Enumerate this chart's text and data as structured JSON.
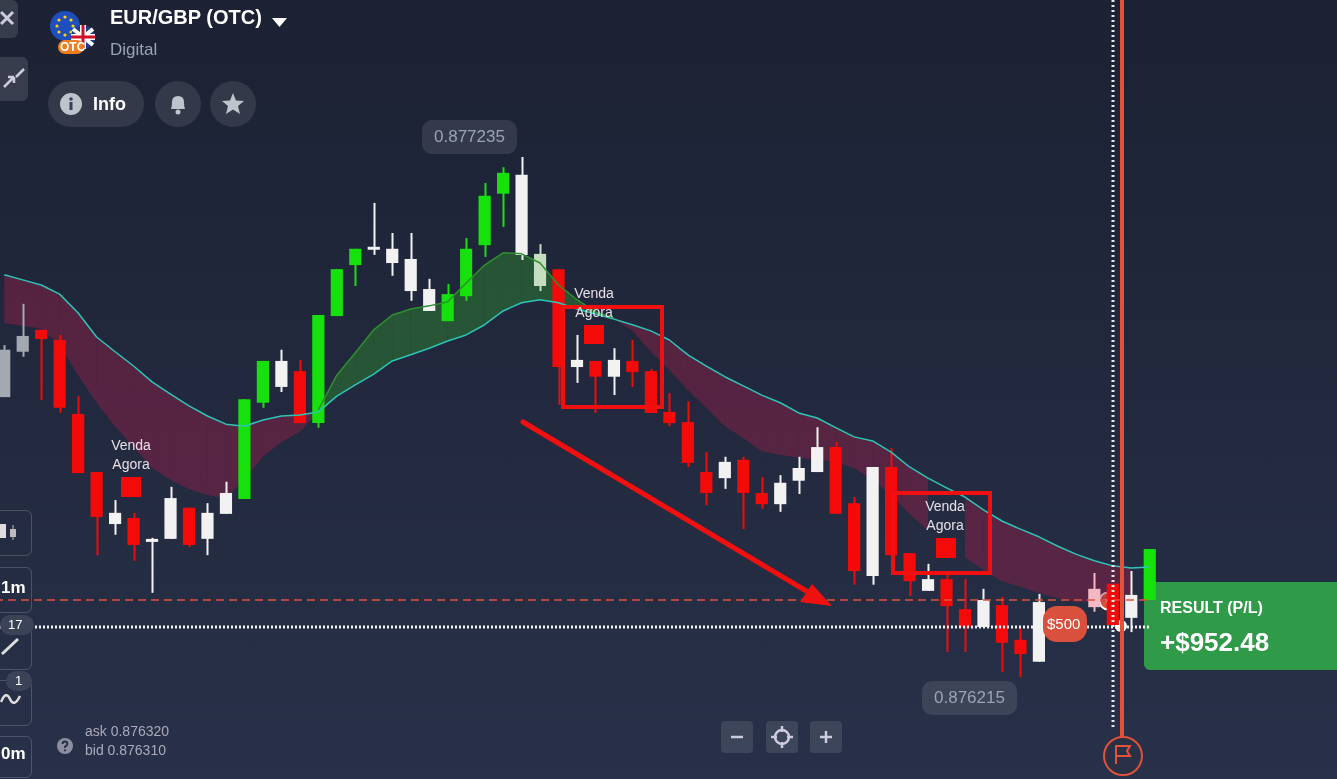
{
  "chart_data": {
    "type": "candlestick",
    "title": "EUR/GBP (OTC)",
    "subtitle": "Digital",
    "categories": [
      null,
      null,
      null,
      null,
      null,
      null,
      null,
      null,
      null,
      null,
      null,
      null,
      null,
      null,
      null,
      null,
      null,
      null,
      null,
      null,
      null,
      null,
      null,
      null,
      null,
      null,
      null,
      null,
      null,
      null,
      null,
      null,
      null,
      null,
      null,
      null,
      null,
      null,
      null,
      null,
      null,
      null,
      null,
      null,
      null,
      null,
      null,
      null,
      null,
      null,
      null,
      null,
      null,
      null,
      null,
      null,
      null,
      null,
      null,
      null,
      null,
      null,
      null
    ],
    "ohlc": [
      [
        0.876764,
        0.876866,
        0.876764,
        0.876857
      ],
      [
        0.876853,
        0.876947,
        0.876843,
        0.876884
      ],
      [
        0.876896,
        0.876896,
        0.876758,
        0.876878
      ],
      [
        0.876876,
        0.876886,
        0.876733,
        0.876743
      ],
      [
        0.876731,
        0.876766,
        0.876615,
        0.876615
      ],
      [
        0.876617,
        0.876617,
        0.876454,
        0.876529
      ],
      [
        0.876515,
        0.876562,
        0.876494,
        0.876537
      ],
      [
        0.876527,
        0.876537,
        0.876443,
        0.876474
      ],
      [
        0.87648,
        0.876488,
        0.87638,
        0.876482
      ],
      [
        0.876486,
        0.876588,
        0.876486,
        0.876566
      ],
      [
        0.876547,
        0.876547,
        0.87647,
        0.876474
      ],
      [
        0.876486,
        0.876556,
        0.876454,
        0.876537
      ],
      [
        0.876535,
        0.876598,
        0.876535,
        0.876576
      ],
      [
        0.876564,
        0.87676,
        0.876564,
        0.87676
      ],
      [
        0.876753,
        0.876835,
        0.876743,
        0.876835
      ],
      [
        0.876784,
        0.876857,
        0.876774,
        0.876835
      ],
      [
        0.876815,
        0.876837,
        0.876713,
        0.876713
      ],
      [
        0.876713,
        0.876925,
        0.876704,
        0.876925
      ],
      [
        0.876923,
        0.877015,
        0.876923,
        0.877015
      ],
      [
        0.877023,
        0.877055,
        0.876982,
        0.877055
      ],
      [
        0.877053,
        0.877145,
        0.877043,
        0.877057
      ],
      [
        0.877027,
        0.877086,
        0.877002,
        0.877055
      ],
      [
        0.876972,
        0.877086,
        0.876953,
        0.877035
      ],
      [
        0.876933,
        0.876996,
        0.876933,
        0.876976
      ],
      [
        0.876913,
        0.876986,
        0.876913,
        0.876966
      ],
      [
        0.876962,
        0.877076,
        0.876953,
        0.877055
      ],
      [
        0.877062,
        0.877184,
        0.877039,
        0.877159
      ],
      [
        0.877163,
        0.877215,
        0.877098,
        0.877204
      ],
      [
        0.877043,
        0.877235,
        0.877033,
        0.8772
      ],
      [
        0.876982,
        0.877064,
        0.876972,
        0.877045
      ],
      [
        0.877015,
        0.877015,
        0.876749,
        0.876823
      ],
      [
        0.876823,
        0.876886,
        0.876792,
        0.876837
      ],
      [
        0.876835,
        0.876835,
        0.876733,
        0.876804
      ],
      [
        0.876804,
        0.87686,
        0.876768,
        0.876837
      ],
      [
        0.876835,
        0.876876,
        0.876784,
        0.876813
      ],
      [
        0.876815,
        0.876819,
        0.876733,
        0.876733
      ],
      [
        0.876735,
        0.876772,
        0.876707,
        0.876713
      ],
      [
        0.876715,
        0.876756,
        0.876627,
        0.876635
      ],
      [
        0.876617,
        0.876656,
        0.876552,
        0.876576
      ],
      [
        0.876605,
        0.876647,
        0.876584,
        0.876637
      ],
      [
        0.876641,
        0.876647,
        0.876505,
        0.876576
      ],
      [
        0.876576,
        0.876607,
        0.876545,
        0.876554
      ],
      [
        0.876554,
        0.876611,
        0.876539,
        0.876596
      ],
      [
        0.8766,
        0.876647,
        0.876574,
        0.876625
      ],
      [
        0.876617,
        0.876705,
        0.876617,
        0.876666
      ],
      [
        0.876666,
        0.876676,
        0.876535,
        0.876535
      ],
      [
        0.876556,
        0.876568,
        0.876396,
        0.876423
      ],
      [
        0.876413,
        0.876627,
        0.876396,
        0.876627
      ],
      [
        0.876627,
        0.876664,
        0.876454,
        0.876454
      ],
      [
        0.876458,
        0.876458,
        0.876374,
        0.876403
      ],
      [
        0.876384,
        0.876437,
        0.876384,
        0.876407
      ],
      [
        0.876407,
        0.876419,
        0.876264,
        0.876354
      ],
      [
        0.876348,
        0.876407,
        0.876264,
        0.876313
      ],
      [
        0.876313,
        0.876388,
        0.876313,
        0.876366
      ],
      [
        0.876356,
        0.876372,
        0.876225,
        0.876282
      ],
      [
        0.876288,
        0.876313,
        0.876215,
        0.87626
      ],
      [
        0.876245,
        0.876378,
        0.876245,
        0.876362
      ],
      null,
      null,
      [
        0.876352,
        0.876419,
        0.876343,
        0.876388
      ],
      [
        0.876398,
        0.876398,
        0.876317,
        0.876317
      ],
      [
        0.876331,
        0.876423,
        0.876303,
        0.876376
      ],
      [
        0.876366,
        0.876466,
        0.876366,
        0.876466
      ]
    ],
    "colors": [
      "#a4a8b0",
      "#a4a8b0",
      "#f50a0a",
      "#f50a0a",
      "#f50a0a",
      "#f50a0a",
      "#f2f2f2",
      "#f50a0a",
      "#f2f2f2",
      "#f2f2f2",
      "#f50a0a",
      "#f2f2f2",
      "#f2f2f2",
      "#16e10d",
      "#16e10d",
      "#f2f2f2",
      "#f50a0a",
      "#16e10d",
      "#16e10d",
      "#16e10d",
      "#f2f2f2",
      "#f2f2f2",
      "#f2f2f2",
      "#f2f2f2",
      "#16e10d",
      "#16e10d",
      "#16e10d",
      "#16e10d",
      "#f2f2f2",
      "#c4dcc0",
      "#f50a0a",
      "#f2f2f2",
      "#f50a0a",
      "#f2f2f2",
      "#f50a0a",
      "#f50a0a",
      "#f50a0a",
      "#f50a0a",
      "#f50a0a",
      "#f2f2f2",
      "#f50a0a",
      "#f50a0a",
      "#f2f2f2",
      "#f2f2f2",
      "#f2f2f2",
      "#f50a0a",
      "#f50a0a",
      "#f2f2f2",
      "#f50a0a",
      "#f50a0a",
      "#f2f2f2",
      "#f50a0a",
      "#f50a0a",
      "#f2f2f2",
      "#f50a0a",
      "#f50a0a",
      "#f2f2f2",
      "#f2f2f2",
      "#f50a0a",
      "#f4b8c4",
      "#f50a0a",
      "#f2f2f2",
      "#16e10d"
    ],
    "series": [
      {
        "type": "line",
        "color": "#2ec4b6",
        "values": [
          0.877004,
          0.876994,
          0.876984,
          0.876966,
          0.876929,
          0.876882,
          0.876853,
          0.876825,
          0.876794,
          0.87677,
          0.876747,
          0.876727,
          0.876711,
          0.876707,
          0.876719,
          0.876727,
          0.876729,
          0.876735,
          0.876766,
          0.876788,
          0.876809,
          0.876835,
          0.876847,
          0.87686,
          0.876874,
          0.876886,
          0.876906,
          0.876933,
          0.876949,
          0.876955,
          0.876949,
          0.876937,
          0.876927,
          0.876917,
          0.876906,
          0.876894,
          0.876876,
          0.876847,
          0.876825,
          0.876804,
          0.876786,
          0.876768,
          0.876753,
          0.876733,
          0.876723,
          0.876704,
          0.876686,
          0.876678,
          0.876656,
          0.876627,
          0.876605,
          0.876586,
          0.876568,
          0.876543,
          0.876521,
          0.876505,
          0.87649,
          0.876472,
          0.876456,
          0.876443,
          0.876433,
          0.876429,
          0.876431
        ],
        "lower": [
          0.876909,
          0.876904,
          0.876898,
          0.876866,
          0.876807,
          0.876753,
          0.876707,
          0.876666,
          0.876625,
          0.876602,
          0.876584,
          0.876572,
          0.876566,
          0.876602,
          0.876647,
          0.876676,
          0.876696,
          0.876735,
          null,
          null,
          null,
          null,
          null,
          null,
          null,
          null,
          null,
          null,
          null,
          null,
          null,
          null,
          null,
          0.876917,
          0.876894,
          0.876853,
          0.876817,
          0.876778,
          0.876743,
          0.876707,
          0.876684,
          0.876658,
          0.876651,
          0.876645,
          0.876641,
          0.876637,
          0.876625,
          0.876602,
          0.876572,
          0.876535,
          0.876503,
          null,
          0.87645,
          0.876425,
          0.876403,
          0.876392,
          0.87638,
          0.87637,
          0.876362,
          0.876362,
          0.876364,
          0.876366,
          null
        ],
        "upper": [
          0.877004,
          0.876994,
          0.876984,
          0.876966,
          0.876929,
          0.876882,
          0.876853,
          0.876825,
          0.876794,
          0.87677,
          0.876747,
          0.876727,
          0.876711,
          0.876707,
          0.876719,
          0.876727,
          0.876729,
          0.876739,
          null,
          null,
          null,
          null,
          null,
          null,
          null,
          null,
          null,
          null,
          null,
          null,
          null,
          null,
          null,
          0.876919,
          0.876906,
          0.876894,
          0.876876,
          0.876847,
          0.876825,
          0.876804,
          0.876786,
          0.876768,
          0.876753,
          0.876733,
          0.876723,
          0.876704,
          0.876686,
          0.876678,
          0.876656,
          0.876627,
          0.876605,
          null,
          0.876568,
          0.876543,
          0.876521,
          0.876505,
          0.87649,
          0.876472,
          0.876456,
          0.876443,
          0.876433,
          0.876429,
          null
        ]
      },
      {
        "type": "line",
        "color": "#2f8f2f",
        "values": [
          null,
          null,
          null,
          null,
          null,
          null,
          null,
          null,
          null,
          null,
          null,
          null,
          null,
          null,
          null,
          null,
          null,
          0.876739,
          0.876807,
          0.876851,
          0.876896,
          0.876925,
          0.876937,
          0.876943,
          0.876951,
          0.876988,
          0.877023,
          0.877047,
          0.877045,
          0.877027,
          0.876984,
          0.876955,
          0.876931,
          0.876919,
          null,
          null,
          null,
          null,
          null,
          null,
          null,
          null,
          null,
          null,
          null,
          null,
          null,
          null,
          null,
          null,
          null,
          null,
          null,
          null,
          null,
          null,
          null,
          null,
          null,
          null,
          null,
          null,
          null
        ],
        "lower": [
          null,
          null,
          null,
          null,
          null,
          null,
          null,
          null,
          null,
          null,
          null,
          null,
          null,
          null,
          null,
          null,
          null,
          0.876735,
          0.876766,
          0.876788,
          0.876809,
          0.876835,
          0.876847,
          0.87686,
          0.876874,
          0.876886,
          0.876906,
          0.876933,
          0.876949,
          0.876955,
          0.876949,
          0.876937,
          0.876927,
          0.876917,
          null,
          null,
          null,
          null,
          null,
          null,
          null,
          null,
          null,
          null,
          null,
          null,
          null,
          null,
          null,
          null,
          null,
          null,
          null,
          null,
          null,
          null,
          null,
          null,
          null,
          null,
          null,
          null,
          null
        ],
        "upper": [
          null,
          null,
          null,
          null,
          null,
          null,
          null,
          null,
          null,
          null,
          null,
          null,
          null,
          null,
          null,
          null,
          null,
          0.876739,
          0.876807,
          0.876851,
          0.876896,
          0.876925,
          0.876937,
          0.876943,
          0.876951,
          0.876988,
          0.877023,
          0.877047,
          0.877045,
          0.877027,
          0.876984,
          0.876955,
          0.876931,
          0.876919,
          null,
          null,
          null,
          null,
          null,
          null,
          null,
          null,
          null,
          null,
          null,
          null,
          null,
          null,
          null,
          null,
          null,
          null,
          null,
          null,
          null,
          null,
          null,
          null,
          null,
          null,
          null,
          null,
          null
        ]
      }
    ],
    "ref_lines": [
      {
        "axis": "y",
        "value": 0.876313,
        "color": "#f2f2f2",
        "line_style": "dotted"
      },
      {
        "axis": "y",
        "value": 0.876366,
        "color": "#e0523a",
        "line_style": "dashed"
      }
    ],
    "annotations": [
      "Venda Agora",
      "Venda Agora",
      "Venda Agora",
      "0.877235",
      "0.876215",
      "ask 0.876320",
      "bid 0.876310",
      "$500",
      "RESULT (P/L)",
      "+$952.48",
      "Info",
      "OTC",
      "17",
      "1",
      "1m",
      "0m"
    ]
  }
}
